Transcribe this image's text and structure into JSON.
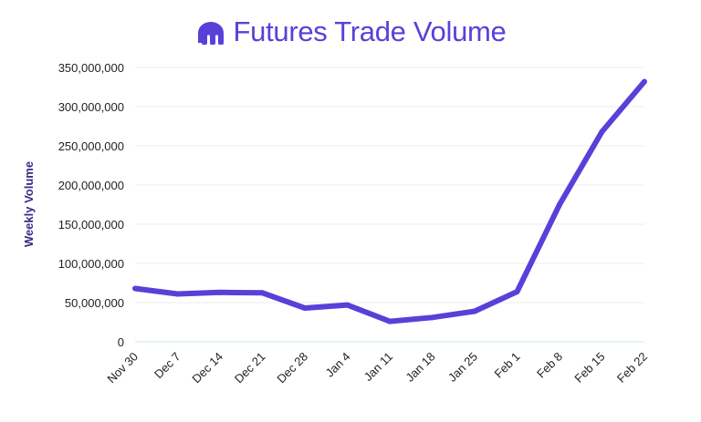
{
  "chart_data": {
    "type": "line",
    "title": "Futures Trade Volume",
    "xlabel": "",
    "ylabel": "Weekly Volume",
    "categories": [
      "Nov 30",
      "Dec 7",
      "Dec 14",
      "Dec 21",
      "Dec 28",
      "Jan 4",
      "Jan 11",
      "Jan 18",
      "Jan 25",
      "Feb 1",
      "Feb 8",
      "Feb 15",
      "Feb 22"
    ],
    "series": [
      {
        "values": [
          68000000,
          61000000,
          63000000,
          62500000,
          43000000,
          47000000,
          26000000,
          31000000,
          39000000,
          64000000,
          175000000,
          268000000,
          332000000
        ]
      }
    ],
    "yticks": [
      "0",
      "50,000,000",
      "100,000,000",
      "150,000,000",
      "200,000,000",
      "250,000,000",
      "300,000,000",
      "350,000,000"
    ],
    "ylim": [
      0,
      350000000
    ],
    "grid": true,
    "legend": "none",
    "colors": {
      "line": "#5741d9",
      "title": "#5741d9",
      "grid": "#eeeeee",
      "axis": "#cce9f7"
    },
    "logo_icon": "kraken-logo-icon"
  }
}
